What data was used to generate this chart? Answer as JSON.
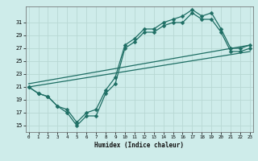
{
  "title": "",
  "xlabel": "Humidex (Indice chaleur)",
  "bg_color": "#ceecea",
  "grid_color": "#b8d8d4",
  "line_color": "#1e6e64",
  "series_jagged1_x": [
    0,
    1,
    2,
    3,
    4,
    5,
    6,
    7,
    8,
    9,
    10,
    11,
    12,
    13,
    14,
    15,
    16,
    17,
    18,
    19,
    20,
    21,
    22,
    23
  ],
  "series_jagged1_y": [
    21.0,
    20.0,
    19.5,
    18.0,
    17.0,
    15.0,
    16.5,
    16.5,
    20.0,
    21.5,
    27.0,
    28.0,
    29.5,
    29.5,
    30.5,
    31.0,
    31.0,
    32.5,
    31.5,
    31.5,
    29.5,
    26.5,
    26.5,
    27.0
  ],
  "series_jagged2_x": [
    0,
    1,
    2,
    3,
    4,
    5,
    6,
    7,
    8,
    9,
    10,
    11,
    12,
    13,
    14,
    15,
    16,
    17,
    18,
    19,
    20,
    21,
    22,
    23
  ],
  "series_jagged2_y": [
    21.0,
    20.0,
    19.5,
    18.0,
    17.5,
    15.5,
    17.0,
    17.5,
    20.5,
    22.5,
    27.5,
    28.5,
    30.0,
    30.0,
    31.0,
    31.5,
    32.0,
    33.0,
    32.0,
    32.5,
    30.0,
    27.0,
    27.0,
    27.5
  ],
  "series_line1_x": [
    0,
    23
  ],
  "series_line1_y": [
    21.0,
    26.5
  ],
  "series_line2_x": [
    0,
    23
  ],
  "series_line2_y": [
    21.5,
    27.5
  ],
  "yticks": [
    15,
    17,
    19,
    21,
    23,
    25,
    27,
    29,
    31
  ],
  "xticks": [
    0,
    1,
    2,
    3,
    4,
    5,
    6,
    7,
    8,
    9,
    10,
    11,
    12,
    13,
    14,
    15,
    16,
    17,
    18,
    19,
    20,
    21,
    22,
    23
  ],
  "xlim": [
    -0.3,
    23.3
  ],
  "ylim": [
    14.0,
    33.5
  ],
  "marker_size": 2.5,
  "line_width": 0.9
}
